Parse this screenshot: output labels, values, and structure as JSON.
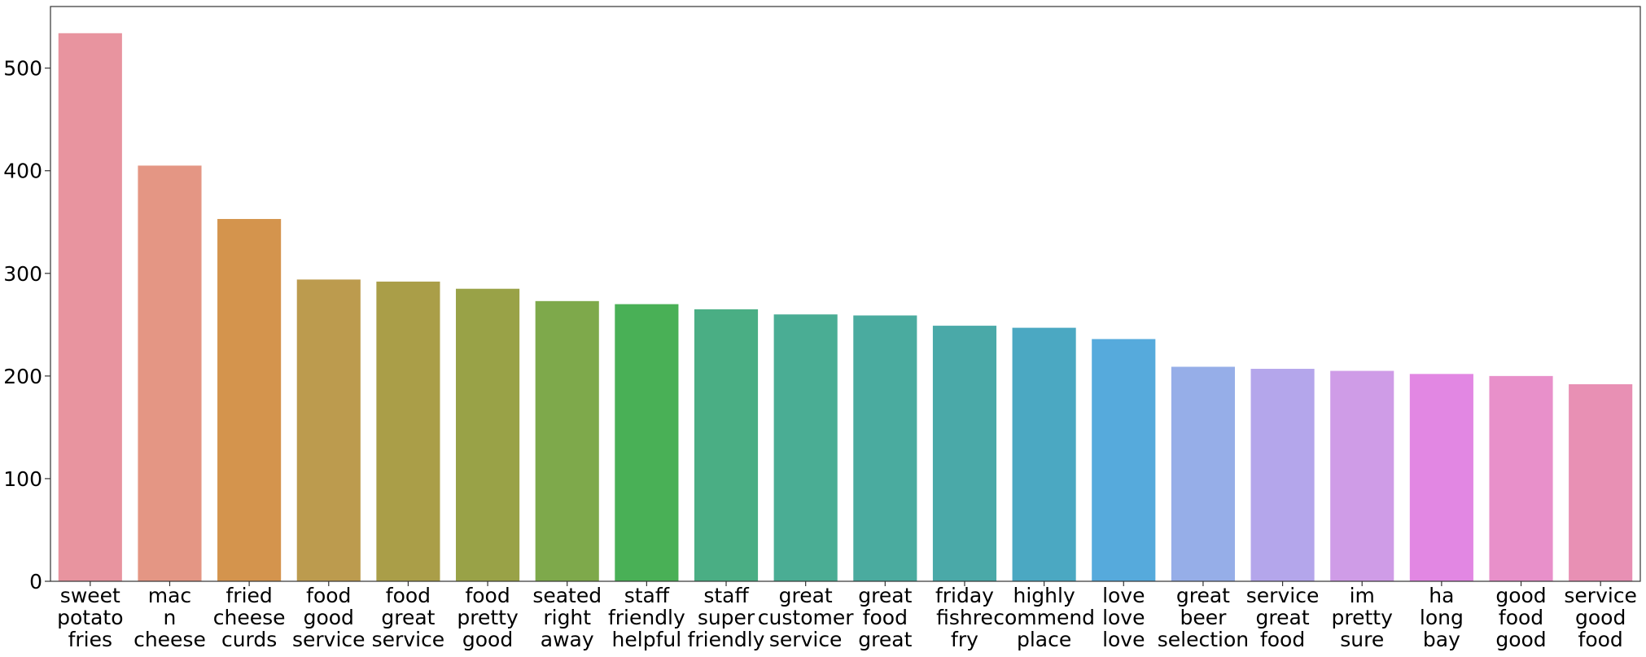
{
  "chart_data": {
    "type": "bar",
    "title": "",
    "xlabel": "",
    "ylabel": "",
    "ylim": [
      0,
      560
    ],
    "yticks": [
      0,
      100,
      200,
      300,
      400,
      500
    ],
    "grid": false,
    "legend": "none",
    "categories": [
      [
        "sweet",
        "potato",
        "fries"
      ],
      [
        "mac",
        "n",
        "cheese"
      ],
      [
        "fried",
        "cheese",
        "curds"
      ],
      [
        "food",
        "good",
        "service"
      ],
      [
        "food",
        "great",
        "service"
      ],
      [
        "food",
        "pretty",
        "good"
      ],
      [
        "seated",
        "right",
        "away"
      ],
      [
        "staff",
        "friendly",
        "helpful"
      ],
      [
        "staff",
        "super",
        "friendly"
      ],
      [
        "great",
        "customer",
        "service"
      ],
      [
        "great",
        "food",
        "great"
      ],
      [
        "friday",
        "fishre",
        "fry"
      ],
      [
        "highly",
        "commend",
        "place"
      ],
      [
        "love",
        "love",
        "love"
      ],
      [
        "great",
        "beer",
        "selection"
      ],
      [
        "service",
        "great",
        "food"
      ],
      [
        "im",
        "pretty",
        "sure"
      ],
      [
        "ha",
        "long",
        "bay"
      ],
      [
        "good",
        "food",
        "good"
      ],
      [
        "service",
        "good",
        "food"
      ]
    ],
    "values": [
      534,
      405,
      353,
      294,
      292,
      285,
      273,
      270,
      265,
      260,
      259,
      249,
      247,
      236,
      209,
      207,
      205,
      202,
      200,
      192
    ],
    "colors": [
      "#e8949f",
      "#e49684",
      "#d4944d",
      "#bc9b4e",
      "#aa9e48",
      "#99a247",
      "#7ea94b",
      "#49b056",
      "#4aae84",
      "#4aad94",
      "#4aab9f",
      "#4aa9a8",
      "#4ba8c2",
      "#56aadc",
      "#96aee8",
      "#b4a6eb",
      "#cf9ce7",
      "#e287e3",
      "#e890ca",
      "#e890b4"
    ]
  }
}
